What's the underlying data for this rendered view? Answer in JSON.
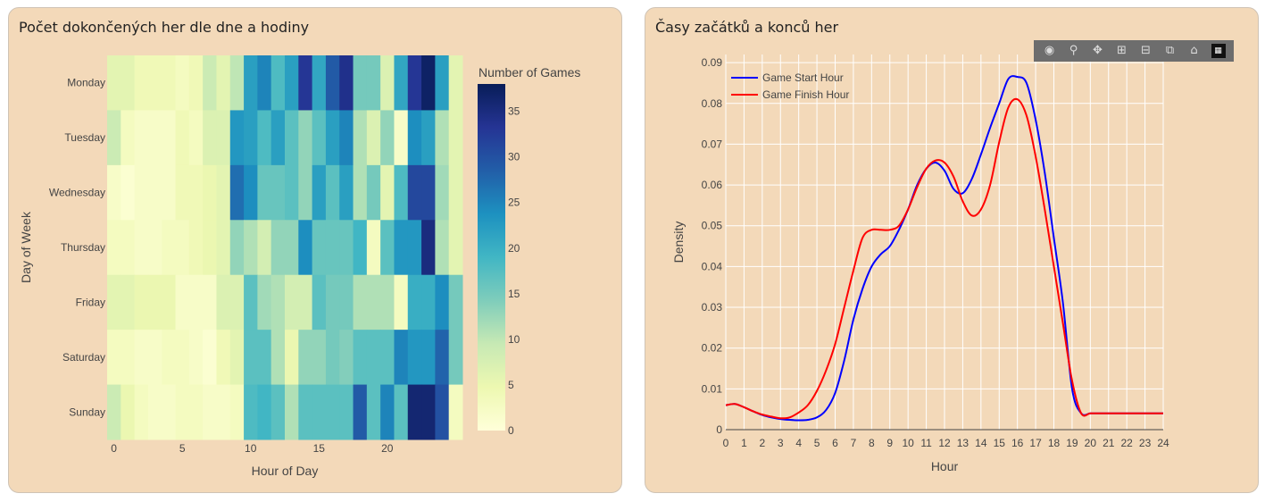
{
  "left_panel": {
    "title": "Počet dokončených her dle dne a hodiny"
  },
  "right_panel": {
    "title": "Časy začátků a konců her",
    "modebar": [
      "camera-icon",
      "zoom-icon",
      "pan-icon",
      "zoom-in-icon",
      "zoom-out-icon",
      "autoscale-icon",
      "reset-axes-icon",
      "plotly-logo"
    ]
  },
  "chart_data": [
    {
      "type": "heatmap",
      "xlabel": "Hour of Day",
      "ylabel": "Day of Week",
      "x_ticks": [
        0,
        5,
        10,
        15,
        20
      ],
      "y_categories": [
        "Monday",
        "Tuesday",
        "Wednesday",
        "Thursday",
        "Friday",
        "Saturday",
        "Sunday"
      ],
      "colorbar": {
        "title": "Number of Games",
        "range": [
          0,
          38
        ],
        "ticks": [
          0,
          5,
          10,
          15,
          20,
          25,
          30,
          35
        ]
      },
      "colorscale": [
        "#ffffd9",
        "#edf8b1",
        "#c7e9b4",
        "#7fcdbb",
        "#41b6c4",
        "#1d91c0",
        "#225ea8",
        "#253494",
        "#081d58"
      ],
      "z": [
        [
          6,
          6,
          4,
          4,
          4,
          3,
          4,
          9,
          6,
          10,
          22,
          25,
          18,
          22,
          33,
          21,
          29,
          34,
          15,
          15,
          7,
          21,
          33,
          37,
          22,
          6
        ],
        [
          9,
          3,
          2,
          2,
          2,
          4,
          3,
          7,
          7,
          23,
          22,
          18,
          22,
          17,
          13,
          17,
          22,
          25,
          11,
          7,
          13,
          2,
          24,
          22,
          11,
          6
        ],
        [
          2,
          1,
          2,
          2,
          2,
          4,
          4,
          5,
          6,
          27,
          24,
          16,
          16,
          17,
          13,
          22,
          17,
          22,
          11,
          15,
          6,
          18,
          31,
          31,
          12,
          6
        ],
        [
          3,
          3,
          2,
          2,
          3,
          3,
          4,
          5,
          6,
          13,
          11,
          8,
          13,
          13,
          24,
          16,
          16,
          16,
          19,
          3,
          17,
          23,
          23,
          35,
          11,
          6
        ],
        [
          6,
          6,
          5,
          5,
          5,
          2,
          2,
          2,
          7,
          7,
          17,
          12,
          11,
          8,
          8,
          17,
          15,
          15,
          11,
          11,
          11,
          3,
          20,
          20,
          24,
          15
        ],
        [
          3,
          3,
          2,
          2,
          3,
          3,
          2,
          1,
          4,
          6,
          17,
          17,
          11,
          5,
          13,
          13,
          15,
          14,
          17,
          17,
          17,
          25,
          23,
          23,
          28,
          15
        ],
        [
          9,
          5,
          3,
          2,
          2,
          3,
          3,
          2,
          2,
          3,
          18,
          19,
          17,
          11,
          17,
          17,
          17,
          17,
          29,
          17,
          25,
          17,
          36,
          36,
          30,
          3
        ]
      ]
    },
    {
      "type": "line",
      "xlabel": "Hour",
      "ylabel": "Density",
      "xlim": [
        0,
        24
      ],
      "ylim": [
        0,
        0.092
      ],
      "x_ticks": [
        0,
        1,
        2,
        3,
        4,
        5,
        6,
        7,
        8,
        9,
        10,
        11,
        12,
        13,
        14,
        15,
        16,
        17,
        18,
        19,
        20,
        21,
        22,
        23,
        24
      ],
      "y_ticks": [
        0,
        0.01,
        0.02,
        0.03,
        0.04,
        0.05,
        0.06,
        0.07,
        0.08,
        0.09
      ],
      "y_tick_labels": [
        "0",
        "0.01",
        "0.02",
        "0.03",
        "0.04",
        "0.05",
        "0.06",
        "0.07",
        "0.08",
        "0.09"
      ],
      "grid": true,
      "legend": "top-left",
      "x": [
        0,
        0.5,
        1,
        1.5,
        2,
        2.5,
        3,
        3.5,
        4,
        4.5,
        5,
        5.5,
        6,
        6.5,
        7,
        7.5,
        8,
        8.5,
        9,
        9.5,
        10,
        10.5,
        11,
        11.5,
        12,
        12.5,
        13,
        13.5,
        14,
        14.5,
        15,
        15.5,
        16,
        16.5,
        17,
        17.5,
        18,
        18.5,
        19,
        19.5,
        20,
        20.5,
        21,
        21.5,
        22,
        22.5,
        23,
        23.5,
        24
      ],
      "series": [
        {
          "name": "Game Start Hour",
          "color": "#0000ff",
          "values": [
            0.006,
            0.0063,
            0.0055,
            0.0045,
            0.0036,
            0.003,
            0.0026,
            0.0024,
            0.0023,
            0.0024,
            0.003,
            0.0048,
            0.009,
            0.017,
            0.027,
            0.0345,
            0.04,
            0.043,
            0.045,
            0.049,
            0.054,
            0.06,
            0.064,
            0.0655,
            0.0635,
            0.059,
            0.058,
            0.0615,
            0.0675,
            0.074,
            0.08,
            0.086,
            0.0865,
            0.085,
            0.076,
            0.063,
            0.047,
            0.031,
            0.01,
            0.004,
            0.004,
            0.004,
            0.004,
            0.004,
            0.004,
            0.004,
            0.004,
            0.004,
            0.004
          ]
        },
        {
          "name": "Game Finish Hour",
          "color": "#ff0000",
          "values": [
            0.006,
            0.0063,
            0.0055,
            0.0045,
            0.0037,
            0.0032,
            0.0028,
            0.003,
            0.0042,
            0.006,
            0.0095,
            0.0145,
            0.021,
            0.03,
            0.039,
            0.047,
            0.049,
            0.049,
            0.049,
            0.05,
            0.054,
            0.0595,
            0.064,
            0.066,
            0.0655,
            0.062,
            0.056,
            0.0525,
            0.054,
            0.06,
            0.0705,
            0.079,
            0.081,
            0.077,
            0.067,
            0.054,
            0.04,
            0.026,
            0.012,
            0.004,
            0.004,
            0.004,
            0.004,
            0.004,
            0.004,
            0.004,
            0.004,
            0.004,
            0.004
          ]
        }
      ]
    }
  ]
}
